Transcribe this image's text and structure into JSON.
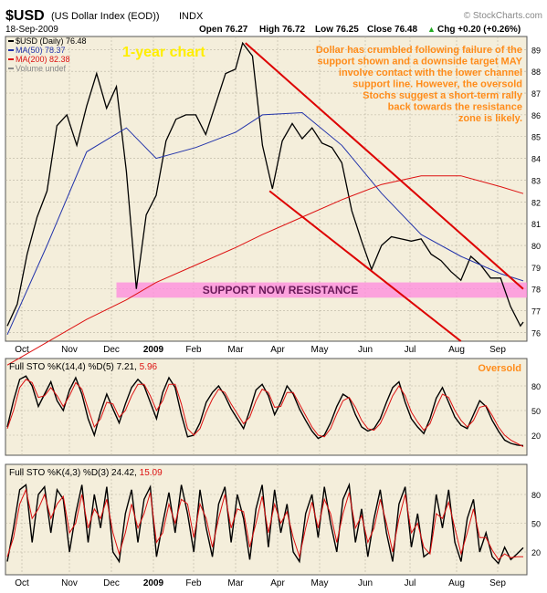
{
  "header": {
    "symbol": "$USD",
    "name": "(US Dollar Index (EOD))",
    "exchange": "INDX",
    "date": "18-Sep-2009",
    "open": "Open 76.27",
    "high": "High 76.72",
    "low": "Low 76.25",
    "close": "Close 76.48",
    "chg": "Chg +0.20 (+0.26%)",
    "chg_arrow": "▲",
    "source": "© StockCharts.com"
  },
  "colors": {
    "price_bg": "#f4eedb",
    "panel_bg": "#f4eedb",
    "price_line": "#000000",
    "ma50": "#2233aa",
    "ma200": "#dd1111",
    "channel": "#dd0000",
    "annotation": "#ff8c1a",
    "resistance_band": "#ff88dd",
    "sto_k": "#000000",
    "sto_d": "#dd1111",
    "grid": "#b8b2a0"
  },
  "chart_data": [
    {
      "type": "line",
      "panel": "price",
      "x_ticks": [
        "Oct",
        "Nov",
        "Dec",
        "2009",
        "Feb",
        "Mar",
        "Apr",
        "May",
        "Jun",
        "Jul",
        "Aug",
        "Sep"
      ],
      "y_ticks": [
        76,
        77,
        78,
        79,
        80,
        81,
        82,
        83,
        84,
        85,
        86,
        87,
        88,
        89
      ],
      "ylim": [
        75.6,
        89.6
      ],
      "legend": [
        {
          "label": "$USD (Daily) 76.48",
          "color": "#000000"
        },
        {
          "label": "MA(50) 78.37",
          "color": "#2233aa"
        },
        {
          "label": "MA(200) 82.38",
          "color": "#dd1111"
        },
        {
          "label": "Volume undef",
          "color": "#888888"
        }
      ],
      "series": [
        {
          "name": "$USD (Daily)",
          "x": [
            "2008-09-19",
            "2008-09-26",
            "2008-10-03",
            "2008-10-10",
            "2008-10-17",
            "2008-10-24",
            "2008-10-31",
            "2008-11-07",
            "2008-11-14",
            "2008-11-21",
            "2008-11-28",
            "2008-12-05",
            "2008-12-12",
            "2008-12-19",
            "2008-12-26",
            "2009-01-02",
            "2009-01-09",
            "2009-01-16",
            "2009-01-23",
            "2009-01-30",
            "2009-02-06",
            "2009-02-13",
            "2009-02-20",
            "2009-02-27",
            "2009-03-04",
            "2009-03-11",
            "2009-03-18",
            "2009-03-25",
            "2009-04-01",
            "2009-04-08",
            "2009-04-15",
            "2009-04-22",
            "2009-04-29",
            "2009-05-06",
            "2009-05-13",
            "2009-05-20",
            "2009-05-27",
            "2009-06-03",
            "2009-06-10",
            "2009-06-17",
            "2009-06-24",
            "2009-07-01",
            "2009-07-08",
            "2009-07-15",
            "2009-07-22",
            "2009-07-29",
            "2009-08-05",
            "2009-08-12",
            "2009-08-19",
            "2009-08-26",
            "2009-09-02",
            "2009-09-09",
            "2009-09-16",
            "2009-09-18"
          ],
          "values": [
            76.3,
            77.3,
            79.6,
            81.3,
            82.5,
            85.5,
            86.0,
            84.6,
            86.4,
            87.9,
            86.3,
            87.3,
            83.4,
            78.0,
            81.4,
            82.3,
            84.8,
            85.8,
            86.0,
            86.0,
            85.1,
            86.5,
            87.9,
            88.1,
            89.3,
            88.7,
            84.6,
            82.6,
            84.8,
            85.6,
            84.9,
            85.4,
            84.7,
            84.5,
            83.8,
            81.6,
            80.2,
            78.9,
            80.0,
            80.4,
            80.3,
            80.2,
            80.3,
            79.6,
            79.3,
            78.8,
            78.4,
            79.5,
            79.1,
            78.5,
            78.5,
            77.2,
            76.3,
            76.48
          ]
        },
        {
          "name": "MA(50)",
          "x": [
            "2008-09-19",
            "2008-10-17",
            "2008-11-14",
            "2008-12-12",
            "2009-01-02",
            "2009-01-30",
            "2009-02-27",
            "2009-03-18",
            "2009-04-15",
            "2009-05-13",
            "2009-06-10",
            "2009-07-08",
            "2009-08-05",
            "2009-09-02",
            "2009-09-18"
          ],
          "values": [
            75.9,
            80.0,
            84.3,
            85.4,
            84.0,
            84.5,
            85.2,
            86.0,
            86.1,
            84.6,
            82.4,
            80.5,
            79.5,
            78.7,
            78.37
          ]
        },
        {
          "name": "MA(200)",
          "x": [
            "2008-09-19",
            "2008-11-14",
            "2008-12-12",
            "2009-01-02",
            "2009-01-30",
            "2009-02-27",
            "2009-03-18",
            "2009-04-15",
            "2009-05-13",
            "2009-06-10",
            "2009-07-08",
            "2009-08-05",
            "2009-09-02",
            "2009-09-18"
          ],
          "values": [
            74.5,
            76.6,
            77.5,
            78.3,
            79.1,
            79.9,
            80.5,
            81.3,
            82.1,
            82.8,
            83.2,
            83.2,
            82.7,
            82.38
          ]
        }
      ],
      "channel_lines": [
        {
          "from": [
            "2009-03-06",
            89.3
          ],
          "to": [
            "2009-09-18",
            78.0
          ]
        },
        {
          "from": [
            "2009-03-23",
            82.5
          ],
          "to": [
            "2009-08-05",
            75.6
          ]
        }
      ],
      "resistance_band": {
        "low": 77.6,
        "high": 78.3,
        "from": "2008-12-05",
        "to": "2009-09-18"
      },
      "annotations": {
        "period": "1-year chart",
        "comment_lines": [
          "Dollar has crumbled following failure of the",
          "support shown and a downside target MAY",
          "involve contact with the lower channel",
          "support line. However, the oversold",
          "Stochs suggest a short-term rally",
          "back towards the resistance",
          "zone is likely."
        ],
        "band_label": "SUPPORT NOW RESISTANCE"
      }
    },
    {
      "type": "line",
      "panel": "sto1",
      "title_prefix": "Full STO %K(14,4) %D(5) 7.21, ",
      "title_value": "5.96",
      "label": "Oversold",
      "y_ticks": [
        20,
        50,
        80
      ],
      "ylim": [
        0,
        100
      ],
      "series": [
        {
          "name": "%K(14,4)",
          "values": [
            30,
            62,
            88,
            92,
            80,
            55,
            70,
            85,
            62,
            50,
            75,
            90,
            70,
            40,
            20,
            48,
            70,
            52,
            35,
            58,
            78,
            88,
            80,
            60,
            40,
            72,
            90,
            78,
            45,
            18,
            20,
            35,
            60,
            72,
            80,
            68,
            52,
            40,
            28,
            50,
            75,
            82,
            68,
            45,
            60,
            80,
            70,
            52,
            38,
            25,
            16,
            20,
            35,
            55,
            70,
            65,
            45,
            30,
            25,
            28,
            40,
            60,
            78,
            85,
            60,
            40,
            30,
            22,
            40,
            65,
            78,
            60,
            42,
            32,
            28,
            45,
            62,
            55,
            38,
            25,
            14,
            10,
            8,
            7.21
          ]
        },
        {
          "name": "%D(5)",
          "values": [
            28,
            50,
            78,
            88,
            84,
            66,
            68,
            78,
            68,
            55,
            68,
            84,
            76,
            52,
            30,
            40,
            60,
            58,
            42,
            50,
            68,
            82,
            82,
            68,
            50,
            62,
            82,
            82,
            58,
            28,
            20,
            28,
            48,
            64,
            76,
            72,
            58,
            46,
            34,
            42,
            62,
            76,
            72,
            54,
            55,
            72,
            72,
            58,
            44,
            30,
            20,
            18,
            28,
            46,
            62,
            66,
            54,
            38,
            28,
            26,
            34,
            50,
            68,
            80,
            68,
            48,
            36,
            26,
            34,
            54,
            70,
            66,
            50,
            38,
            30,
            38,
            54,
            56,
            44,
            30,
            20,
            14,
            10,
            5.96
          ]
        }
      ]
    },
    {
      "type": "line",
      "panel": "sto2",
      "title_prefix": "Full STO %K(4,3) %D(3) 24.42, ",
      "title_value": "15.09",
      "y_ticks": [
        20,
        50,
        80
      ],
      "ylim": [
        0,
        100
      ],
      "x_ticks": [
        "Oct",
        "Nov",
        "Dec",
        "2009",
        "Feb",
        "Mar",
        "Apr",
        "May",
        "Jun",
        "Jul",
        "Aug",
        "Sep"
      ],
      "series": [
        {
          "name": "%K(4,3)",
          "values": [
            10,
            45,
            85,
            90,
            30,
            80,
            88,
            40,
            85,
            75,
            20,
            60,
            90,
            30,
            80,
            45,
            88,
            20,
            10,
            60,
            85,
            30,
            75,
            88,
            15,
            50,
            82,
            40,
            90,
            60,
            20,
            85,
            45,
            15,
            70,
            88,
            30,
            80,
            55,
            12,
            65,
            90,
            25,
            85,
            40,
            70,
            20,
            10,
            60,
            80,
            35,
            88,
            50,
            20,
            75,
            90,
            30,
            65,
            15,
            55,
            85,
            40,
            10,
            70,
            88,
            25,
            60,
            15,
            20,
            80,
            45,
            85,
            30,
            10,
            55,
            75,
            20,
            40,
            15,
            8,
            25,
            12,
            18,
            24.42
          ]
        },
        {
          "name": "%D(3)",
          "values": [
            15,
            35,
            70,
            85,
            55,
            65,
            80,
            55,
            70,
            78,
            40,
            50,
            80,
            45,
            65,
            55,
            75,
            40,
            18,
            40,
            70,
            45,
            60,
            82,
            30,
            40,
            70,
            50,
            75,
            70,
            35,
            70,
            55,
            25,
            55,
            80,
            45,
            65,
            62,
            25,
            50,
            78,
            40,
            70,
            50,
            62,
            35,
            15,
            45,
            72,
            45,
            75,
            60,
            30,
            60,
            82,
            45,
            58,
            30,
            45,
            75,
            50,
            20,
            55,
            80,
            40,
            50,
            25,
            18,
            60,
            55,
            72,
            45,
            18,
            40,
            65,
            35,
            35,
            22,
            12,
            18,
            14,
            15,
            15.09
          ]
        }
      ]
    }
  ]
}
